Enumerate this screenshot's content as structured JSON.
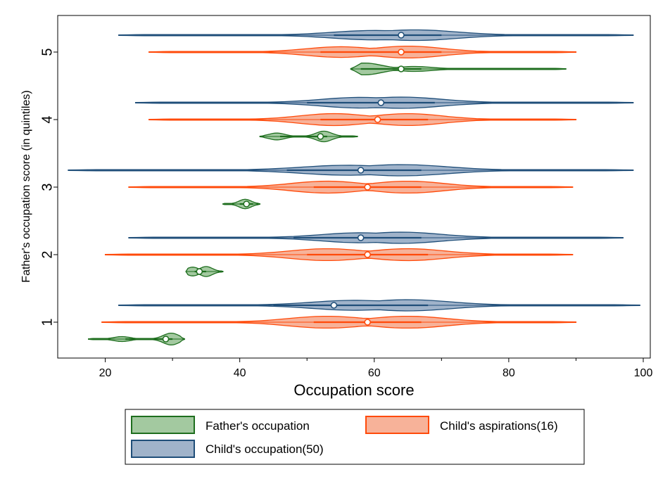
{
  "chart_data": {
    "type": "violin",
    "orientation": "horizontal",
    "xlabel": "Occupation score",
    "ylabel": "Father's occupation score (in quintiles)",
    "xlim": [
      13,
      101
    ],
    "xticks": [
      20,
      40,
      60,
      80,
      100
    ],
    "categories": [
      "1",
      "2",
      "3",
      "4",
      "5"
    ],
    "grid": false,
    "legend_position": "bottom",
    "series": [
      {
        "name": "Father's occupation",
        "fill": "#a3c9a0",
        "stroke": "#1e6e1e",
        "groups": [
          {
            "category": "1",
            "min": 17.5,
            "max": 31.8,
            "median": 29,
            "q1": 23,
            "q3": 30,
            "modes": [
              {
                "x": 22.5,
                "w": 0.35
              },
              {
                "x": 29.8,
                "w": 0.9
              }
            ]
          },
          {
            "category": "2",
            "min": 32,
            "max": 37.5,
            "median": 34,
            "q1": 33.3,
            "q3": 35,
            "modes": [
              {
                "x": 33,
                "w": 0.65
              },
              {
                "x": 35,
                "w": 0.75
              }
            ]
          },
          {
            "category": "3",
            "min": 37.5,
            "max": 43,
            "median": 41,
            "q1": 40,
            "q3": 42,
            "modes": [
              {
                "x": 40.8,
                "w": 0.7
              }
            ]
          },
          {
            "category": "4",
            "min": 43,
            "max": 57.5,
            "median": 52,
            "q1": 46,
            "q3": 53,
            "modes": [
              {
                "x": 45.5,
                "w": 0.5
              },
              {
                "x": 52.5,
                "w": 0.8
              }
            ]
          },
          {
            "category": "5",
            "min": 56.5,
            "max": 88.5,
            "median": 64,
            "q1": 58,
            "q3": 67,
            "modes": [
              {
                "x": 58.5,
                "w": 0.9
              },
              {
                "x": 66,
                "w": 0.35
              }
            ]
          }
        ]
      },
      {
        "name": "Child's aspirations(16)",
        "fill": "#f7b299",
        "stroke": "#ff4a0a",
        "groups": [
          {
            "category": "1",
            "min": 19.5,
            "max": 90,
            "median": 59,
            "q1": 51,
            "q3": 67,
            "modes": [
              {
                "x": 53,
                "w": 0.9
              },
              {
                "x": 65,
                "w": 0.9
              }
            ]
          },
          {
            "category": "2",
            "min": 20,
            "max": 89.5,
            "median": 59,
            "q1": 50,
            "q3": 68,
            "modes": [
              {
                "x": 53,
                "w": 0.9
              },
              {
                "x": 65,
                "w": 0.9
              }
            ]
          },
          {
            "category": "3",
            "min": 23.5,
            "max": 89.5,
            "median": 59,
            "q1": 51,
            "q3": 67,
            "modes": [
              {
                "x": 53,
                "w": 0.9
              },
              {
                "x": 65,
                "w": 0.9
              }
            ]
          },
          {
            "category": "4",
            "min": 26.5,
            "max": 90,
            "median": 60.5,
            "q1": 52,
            "q3": 68,
            "modes": [
              {
                "x": 54,
                "w": 0.9
              },
              {
                "x": 65,
                "w": 0.9
              }
            ]
          },
          {
            "category": "5",
            "min": 26.5,
            "max": 90,
            "median": 64,
            "q1": 52,
            "q3": 70,
            "modes": [
              {
                "x": 55,
                "w": 0.8
              },
              {
                "x": 65,
                "w": 0.9
              }
            ]
          }
        ]
      },
      {
        "name": "Child's occupation(50)",
        "fill": "#a0b3ca",
        "stroke": "#1f4e79",
        "groups": [
          {
            "category": "1",
            "min": 22,
            "max": 99.5,
            "median": 54,
            "q1": 45,
            "q3": 68,
            "modes": [
              {
                "x": 57,
                "w": 0.75
              },
              {
                "x": 65,
                "w": 0.85
              }
            ]
          },
          {
            "category": "2",
            "min": 23.5,
            "max": 97,
            "median": 58,
            "q1": 48,
            "q3": 67,
            "modes": [
              {
                "x": 58,
                "w": 0.75
              },
              {
                "x": 64,
                "w": 0.85
              }
            ]
          },
          {
            "category": "3",
            "min": 14.5,
            "max": 98.5,
            "median": 58,
            "q1": 47,
            "q3": 67,
            "modes": [
              {
                "x": 56,
                "w": 0.75
              },
              {
                "x": 64,
                "w": 0.85
              }
            ]
          },
          {
            "category": "4",
            "min": 24.5,
            "max": 98.5,
            "median": 61,
            "q1": 50,
            "q3": 69,
            "modes": [
              {
                "x": 58,
                "w": 0.8
              },
              {
                "x": 64,
                "w": 0.85
              }
            ]
          },
          {
            "category": "5",
            "min": 22,
            "max": 98.5,
            "median": 64,
            "q1": 54,
            "q3": 70,
            "modes": [
              {
                "x": 60,
                "w": 0.7
              },
              {
                "x": 66,
                "w": 0.8
              }
            ]
          }
        ]
      }
    ]
  }
}
